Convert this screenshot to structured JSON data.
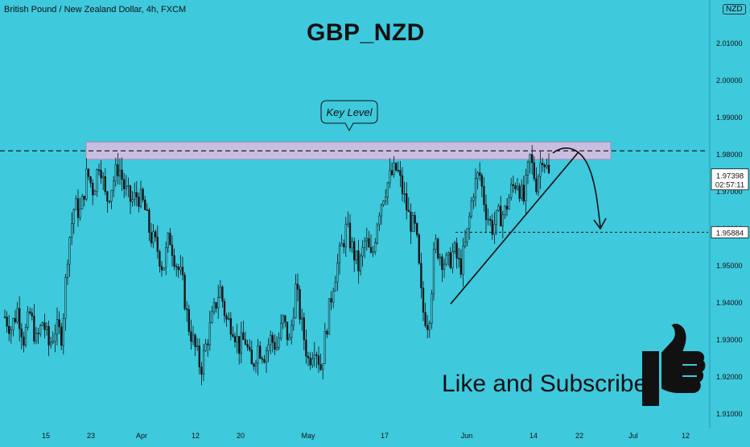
{
  "header": {
    "symbol": "British Pound / New Zealand Dollar, 4h, FXCM",
    "headline": "GBP_NZD",
    "currency_badge": "NZD"
  },
  "overlay": {
    "cta": "Like and Subscribe",
    "callout_label": "Key Level",
    "price_tag_current": "1.97398",
    "price_tag_timer": "02:57:11",
    "price_tag_target": "1.95884"
  },
  "chart_data": {
    "type": "candlestick",
    "ylim": [
      1.905,
      2.02
    ],
    "y_ticks": [
      "2.01000",
      "2.00000",
      "1.99000",
      "1.98000",
      "1.97000",
      "1.96000",
      "1.95000",
      "1.94000",
      "1.93000",
      "1.92000",
      "1.91000"
    ],
    "x_ticks": [
      "15",
      "23",
      "Apr",
      "12",
      "20",
      "May",
      "17",
      "Jun",
      "14",
      "22",
      "Jul",
      "12"
    ],
    "close_path": [
      1.936,
      1.933,
      1.938,
      1.93,
      1.937,
      1.929,
      1.935,
      1.928,
      1.933,
      1.931,
      1.955,
      1.966,
      1.964,
      1.975,
      1.97,
      1.979,
      1.967,
      1.972,
      1.977,
      1.97,
      1.967,
      1.969,
      1.966,
      1.958,
      1.955,
      1.949,
      1.958,
      1.951,
      1.946,
      1.934,
      1.928,
      1.922,
      1.93,
      1.937,
      1.944,
      1.935,
      1.934,
      1.928,
      1.93,
      1.922,
      1.928,
      1.926,
      1.93,
      1.928,
      1.935,
      1.929,
      1.944,
      1.933,
      1.924,
      1.929,
      1.922,
      1.935,
      1.946,
      1.953,
      1.96,
      1.954,
      1.949,
      1.957,
      1.951,
      1.964,
      1.97,
      1.974,
      1.976,
      1.969,
      1.962,
      1.959,
      1.938,
      1.934,
      1.956,
      1.952,
      1.95,
      1.954,
      1.949,
      1.957,
      1.97,
      1.975,
      1.965,
      1.96,
      1.963,
      1.964,
      1.97,
      1.973,
      1.967,
      1.979,
      1.972,
      1.98,
      1.974
    ],
    "key_level_band": [
      1.9785,
      1.9832
    ],
    "resistance_line": 1.9808,
    "target_level": 1.95884,
    "current_price": 1.97398,
    "trendline": [
      {
        "date": "May 25",
        "price": 1.9395
      },
      {
        "date": "Jun 19",
        "price": 1.9805
      }
    ],
    "colors": {
      "background": "#3ec9dd",
      "band": "#c9bee0",
      "ink": "#111111",
      "price_tag": "#ffffff"
    }
  }
}
